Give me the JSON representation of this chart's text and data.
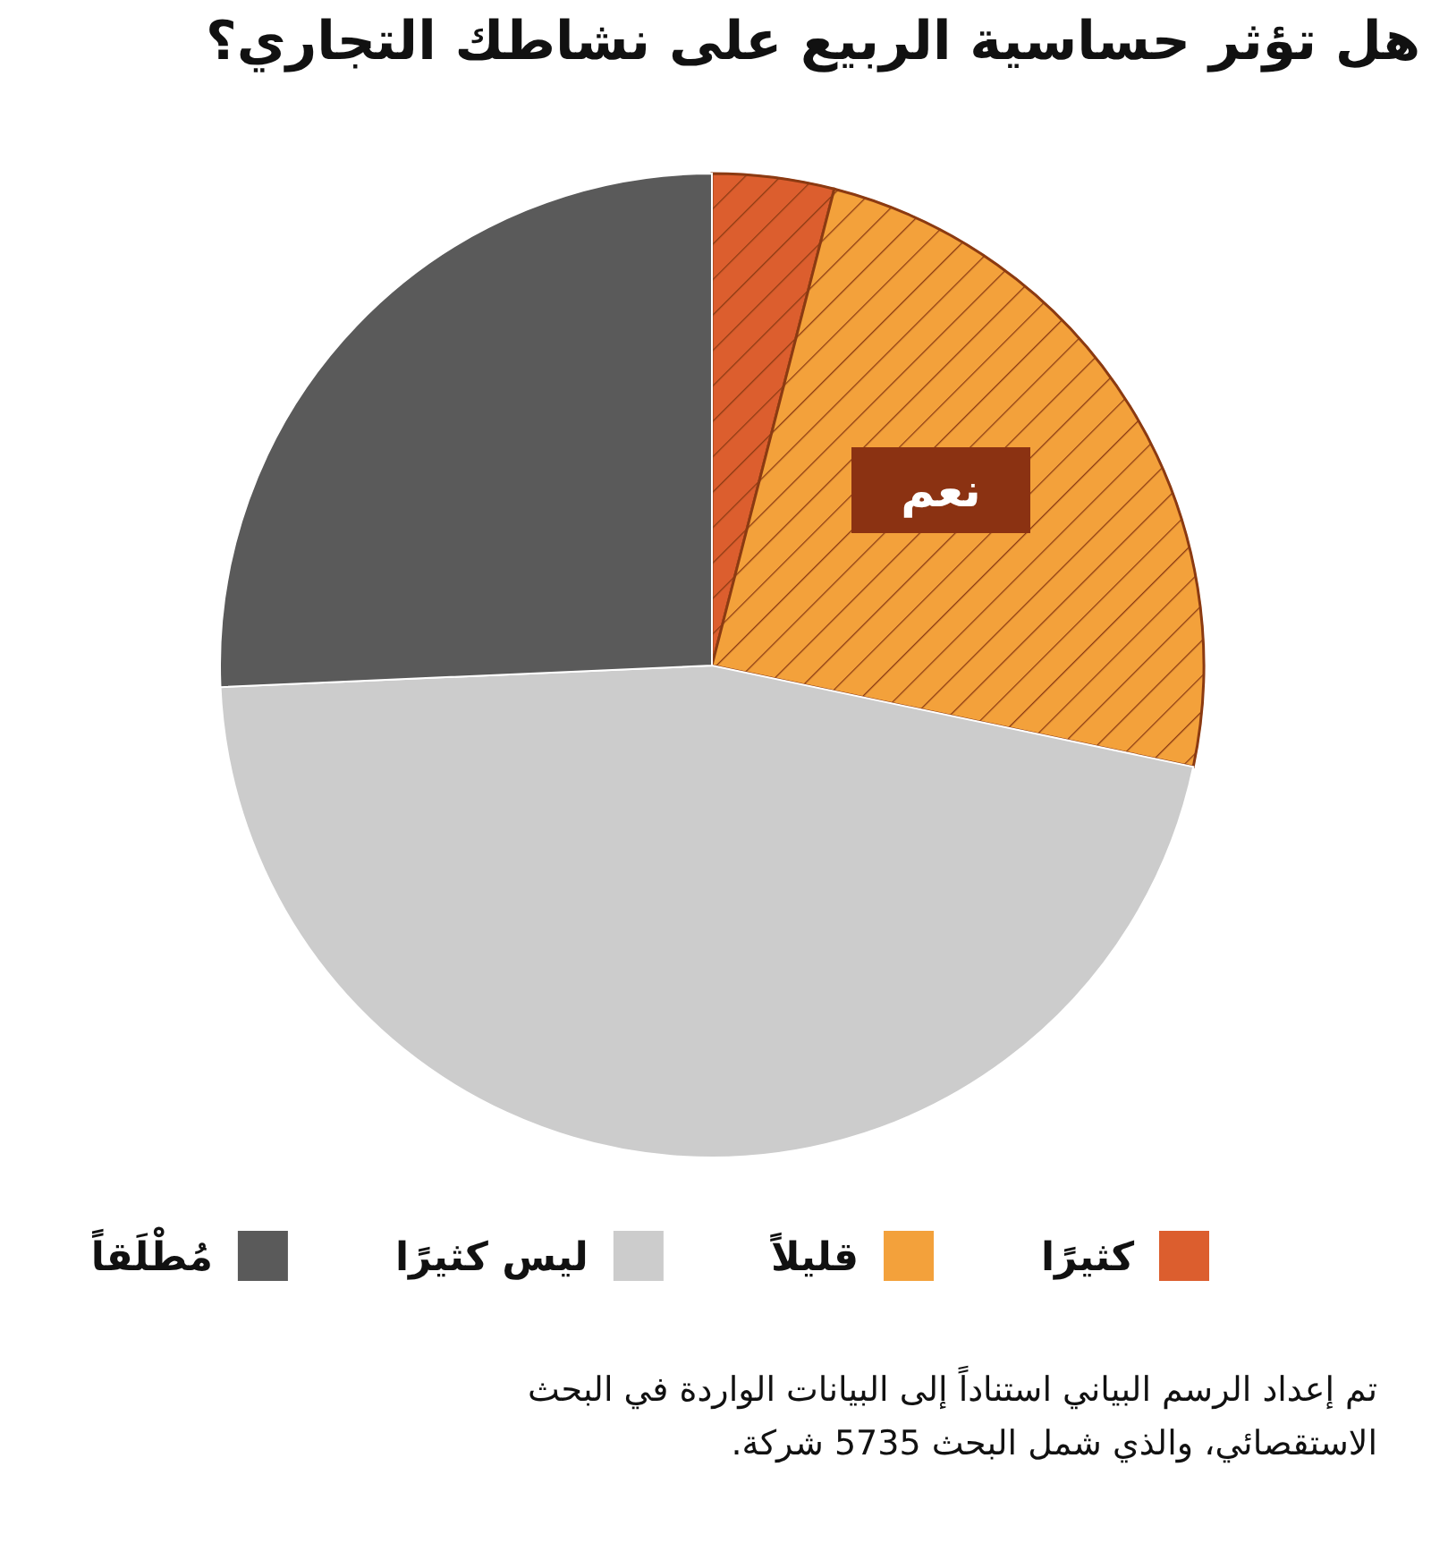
{
  "chart_data": {
    "type": "pie",
    "title": "هل تؤثر حساسية الربيع على نشاطك التجاري؟",
    "categories": [
      "كثيرًا",
      "قليلاً",
      "ليس كثيرًا",
      "مُطْلَقاً"
    ],
    "values": [
      4,
      24.3,
      46,
      25.7
    ],
    "colors": [
      "#dc5e2e",
      "#f3a13b",
      "#cccccc",
      "#5a5a5a"
    ],
    "legend": "bottom",
    "annotations": [
      "نعم",
      "تم إعداد الرسم البياني استناداً إلى البيانات الواردة في البحث الاستقصائي، والذي شمل البحث 5735 شركة."
    ]
  }
}
